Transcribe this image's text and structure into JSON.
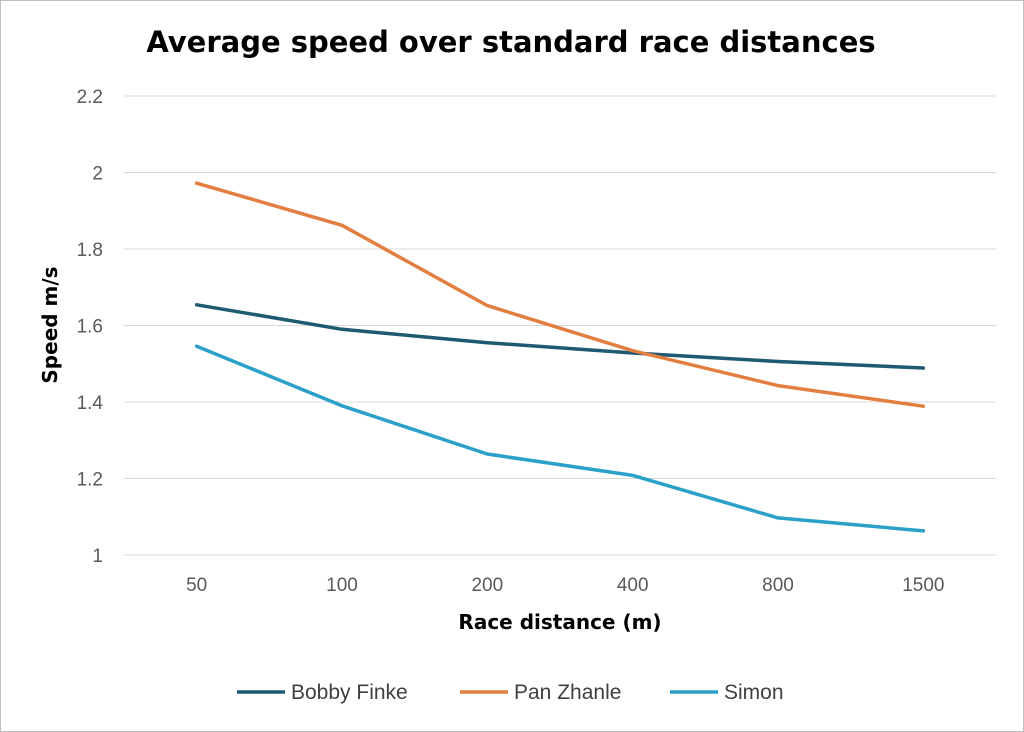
{
  "chart_data": {
    "type": "line",
    "title": "Average speed over standard race distances",
    "xlabel": "Race distance (m)",
    "ylabel": "Speed m/s",
    "categories": [
      "50",
      "100",
      "200",
      "400",
      "800",
      "1500"
    ],
    "ylim": [
      1,
      2.2
    ],
    "yticks": [
      1,
      1.2,
      1.4,
      1.6,
      1.8,
      2,
      2.2
    ],
    "ytick_labels": [
      "1",
      "1.2",
      "1.4",
      "1.6",
      "1.8",
      "2",
      "2.2"
    ],
    "grid": true,
    "legend_position": "bottom",
    "series": [
      {
        "name": "Bobby Finke",
        "color": "#1f5a73",
        "values": [
          1.654,
          1.59,
          1.555,
          1.528,
          1.506,
          1.489
        ]
      },
      {
        "name": "Pan Zhanle",
        "color": "#e27e3f",
        "values": [
          1.972,
          1.862,
          1.652,
          1.534,
          1.443,
          1.389
        ]
      },
      {
        "name": "Simon",
        "color": "#2ba0c8",
        "values": [
          1.546,
          1.39,
          1.264,
          1.208,
          1.097,
          1.063
        ]
      }
    ]
  }
}
